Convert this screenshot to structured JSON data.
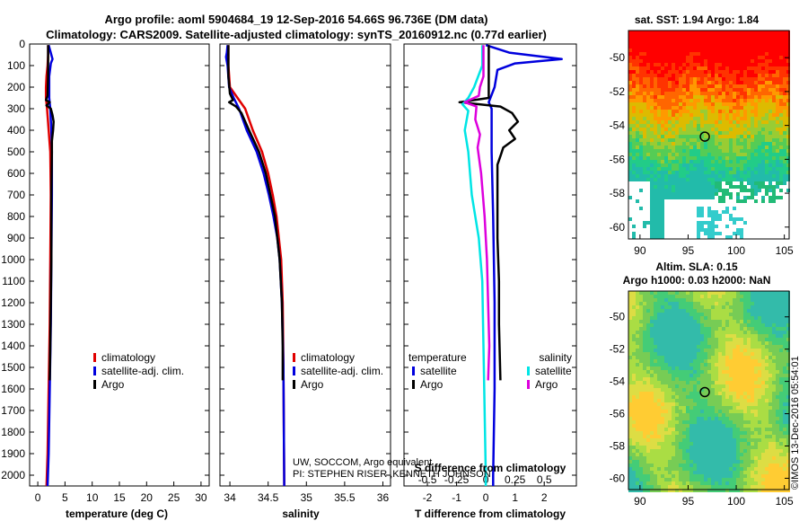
{
  "header": {
    "line1": "Argo profile: aoml 5904684_19 12-Sep-2016 54.66S 96.736E (DM data)",
    "line2": "Climatology: CARS2009. Satellite-adjusted climatology: synTS_20160912.nc (0.77d earlier)"
  },
  "colors": {
    "climatology": "#e00000",
    "satellite": "#0000dd",
    "argo": "#000000",
    "sal_satellite": "#00e5e5",
    "sal_argo": "#dd00dd"
  },
  "depth_axis": {
    "min": 0,
    "max": 2050,
    "ticks": [
      0,
      100,
      200,
      300,
      400,
      500,
      600,
      700,
      800,
      900,
      1000,
      1100,
      1200,
      1300,
      1400,
      1500,
      1600,
      1700,
      1800,
      1900,
      2000
    ]
  },
  "chart_data": [
    {
      "type": "line",
      "id": "temperature",
      "xlabel": "temperature (deg C)",
      "xlim": [
        -1.5,
        31.5
      ],
      "xticks": [
        0,
        5,
        10,
        15,
        20,
        25,
        30
      ],
      "legend": [
        "climatology",
        "satellite-adj. clim.",
        "Argo"
      ],
      "series": [
        {
          "name": "climatology",
          "color": "climatology",
          "points": [
            [
              1.9,
              5
            ],
            [
              1.9,
              50
            ],
            [
              1.8,
              100
            ],
            [
              1.6,
              150
            ],
            [
              1.5,
              200
            ],
            [
              1.5,
              250
            ],
            [
              1.7,
              300
            ],
            [
              2.0,
              400
            ],
            [
              2.3,
              500
            ],
            [
              2.4,
              700
            ],
            [
              2.3,
              1000
            ],
            [
              2.2,
              1300
            ],
            [
              2.0,
              1600
            ],
            [
              1.8,
              1900
            ],
            [
              1.6,
              2050
            ]
          ]
        },
        {
          "name": "satellite-adj. clim.",
          "color": "satellite",
          "points": [
            [
              2.0,
              5
            ],
            [
              2.7,
              70
            ],
            [
              2.4,
              90
            ],
            [
              2.1,
              150
            ],
            [
              2.1,
              250
            ],
            [
              2.3,
              300
            ],
            [
              2.5,
              400
            ],
            [
              2.6,
              500
            ],
            [
              2.6,
              700
            ],
            [
              2.5,
              1000
            ],
            [
              2.4,
              1300
            ],
            [
              2.2,
              1600
            ],
            [
              2.0,
              1900
            ],
            [
              1.8,
              2050
            ]
          ]
        },
        {
          "name": "Argo",
          "color": "argo",
          "points": [
            [
              1.9,
              5
            ],
            [
              1.9,
              150
            ],
            [
              1.8,
              240
            ],
            [
              1.5,
              260
            ],
            [
              2.2,
              270
            ],
            [
              1.6,
              285
            ],
            [
              2.4,
              300
            ],
            [
              2.7,
              330
            ],
            [
              2.9,
              360
            ],
            [
              2.8,
              400
            ],
            [
              2.6,
              450
            ],
            [
              2.6,
              500
            ],
            [
              2.5,
              700
            ],
            [
              2.5,
              1000
            ],
            [
              2.4,
              1200
            ],
            [
              2.3,
              1400
            ],
            [
              2.2,
              1560
            ]
          ]
        }
      ]
    },
    {
      "type": "line",
      "id": "salinity",
      "xlabel": "salinity",
      "xlim": [
        33.87,
        36.1
      ],
      "xticks": [
        34,
        34.5,
        35,
        35.5,
        36
      ],
      "legend": [
        "climatology",
        "satellite-adj. clim.",
        "Argo"
      ],
      "series": [
        {
          "name": "climatology",
          "color": "climatology",
          "points": [
            [
              33.98,
              5
            ],
            [
              33.98,
              100
            ],
            [
              34.0,
              200
            ],
            [
              34.1,
              250
            ],
            [
              34.2,
              300
            ],
            [
              34.3,
              400
            ],
            [
              34.42,
              500
            ],
            [
              34.5,
              600
            ],
            [
              34.56,
              700
            ],
            [
              34.61,
              800
            ],
            [
              34.64,
              900
            ],
            [
              34.67,
              1000
            ],
            [
              34.69,
              1200
            ],
            [
              34.7,
              1500
            ],
            [
              34.71,
              2050
            ]
          ]
        },
        {
          "name": "satellite-adj. clim.",
          "color": "satellite",
          "points": [
            [
              33.97,
              5
            ],
            [
              33.96,
              40
            ],
            [
              33.95,
              60
            ],
            [
              33.97,
              100
            ],
            [
              33.99,
              200
            ],
            [
              34.05,
              250
            ],
            [
              34.12,
              300
            ],
            [
              34.22,
              400
            ],
            [
              34.35,
              500
            ],
            [
              34.44,
              600
            ],
            [
              34.51,
              700
            ],
            [
              34.57,
              800
            ],
            [
              34.62,
              900
            ],
            [
              34.65,
              1000
            ],
            [
              34.68,
              1200
            ],
            [
              34.7,
              1500
            ],
            [
              34.71,
              2050
            ]
          ]
        },
        {
          "name": "Argo",
          "color": "argo",
          "points": [
            [
              33.98,
              5
            ],
            [
              33.98,
              150
            ],
            [
              34.0,
              230
            ],
            [
              34.04,
              260
            ],
            [
              33.99,
              270
            ],
            [
              34.08,
              290
            ],
            [
              34.15,
              320
            ],
            [
              34.25,
              400
            ],
            [
              34.38,
              500
            ],
            [
              34.47,
              600
            ],
            [
              34.53,
              700
            ],
            [
              34.59,
              800
            ],
            [
              34.62,
              900
            ],
            [
              34.65,
              1000
            ],
            [
              34.68,
              1200
            ],
            [
              34.69,
              1400
            ],
            [
              34.69,
              1560
            ]
          ]
        }
      ]
    },
    {
      "type": "line",
      "id": "differences",
      "xlabel": "T difference from climatology",
      "xlabel_top": "S difference from climatology",
      "xlim": [
        -2.8,
        3.1
      ],
      "xticks": [
        -2,
        -1,
        0,
        1,
        2
      ],
      "s_xlim": [
        -0.7,
        0.775
      ],
      "s_xticks": [
        -0.5,
        -0.25,
        0,
        0.25,
        0.5
      ],
      "s_xtick_labels": [
        "-0.5",
        "-0.25",
        "0",
        "0.25",
        "0.5"
      ],
      "legend_left_title": "temperature",
      "legend_right_title": "salinity",
      "legend": [
        "satellite",
        "Argo"
      ],
      "series": [
        {
          "name": "T satellite",
          "color": "satellite",
          "points": [
            [
              0.0,
              5
            ],
            [
              0.8,
              40
            ],
            [
              2.6,
              70
            ],
            [
              1.0,
              90
            ],
            [
              0.4,
              120
            ],
            [
              0.3,
              200
            ],
            [
              0.1,
              270
            ],
            [
              0.2,
              300
            ],
            [
              0.2,
              500
            ],
            [
              0.25,
              800
            ],
            [
              0.3,
              1200
            ],
            [
              0.3,
              1600
            ],
            [
              0.25,
              2000
            ],
            [
              0.25,
              2050
            ]
          ]
        },
        {
          "name": "T Argo",
          "color": "argo",
          "points": [
            [
              0.1,
              5
            ],
            [
              0.1,
              100
            ],
            [
              0.1,
              250
            ],
            [
              -0.9,
              270
            ],
            [
              0.5,
              290
            ],
            [
              0.9,
              320
            ],
            [
              1.1,
              360
            ],
            [
              0.8,
              400
            ],
            [
              1.0,
              440
            ],
            [
              0.6,
              480
            ],
            [
              0.5,
              520
            ],
            [
              0.4,
              560
            ],
            [
              0.4,
              700
            ],
            [
              0.4,
              900
            ],
            [
              0.45,
              1100
            ],
            [
              0.45,
              1300
            ],
            [
              0.5,
              1560
            ]
          ]
        },
        {
          "name": "S satellite",
          "color": "sal_satellite",
          "points": [
            [
              -0.03,
              5
            ],
            [
              -0.03,
              100
            ],
            [
              -0.1,
              200
            ],
            [
              -0.15,
              250
            ],
            [
              -0.2,
              280
            ],
            [
              -0.15,
              310
            ],
            [
              -0.18,
              400
            ],
            [
              -0.15,
              500
            ],
            [
              -0.12,
              700
            ],
            [
              -0.06,
              900
            ],
            [
              -0.03,
              1100
            ],
            [
              -0.02,
              1400
            ],
            [
              0.0,
              2000
            ],
            [
              0.0,
              2050
            ]
          ]
        },
        {
          "name": "S Argo",
          "color": "sal_argo",
          "points": [
            [
              -0.02,
              5
            ],
            [
              -0.02,
              150
            ],
            [
              -0.05,
              200
            ],
            [
              -0.06,
              240
            ],
            [
              -0.18,
              270
            ],
            [
              -0.08,
              290
            ],
            [
              -0.09,
              350
            ],
            [
              -0.05,
              420
            ],
            [
              -0.07,
              480
            ],
            [
              -0.04,
              600
            ],
            [
              -0.01,
              800
            ],
            [
              0.01,
              1000
            ],
            [
              0.02,
              1200
            ],
            [
              0.03,
              1400
            ],
            [
              0.02,
              1560
            ]
          ]
        }
      ]
    },
    {
      "type": "heatmap",
      "id": "sst_map",
      "title": "sat. SST: 1.94 Argo: 1.84",
      "xticks": [
        90,
        95,
        100,
        105
      ],
      "yticks": [
        -50,
        -52,
        -54,
        -56,
        -58,
        -60
      ],
      "xlim": [
        88.8,
        105.5
      ],
      "ylim": [
        -60.7,
        -48.4
      ],
      "marker": [
        96.736,
        -54.66
      ]
    },
    {
      "type": "heatmap",
      "id": "sla_map",
      "title_line1": "Altim. SLA: 0.15",
      "title_line2": "Argo h1000: 0.03 h2000: NaN",
      "xticks": [
        90,
        95,
        100,
        105
      ],
      "yticks": [
        -50,
        -52,
        -54,
        -56,
        -58,
        -60
      ],
      "xlim": [
        88.8,
        105.5
      ],
      "ylim": [
        -60.7,
        -48.4
      ],
      "marker": [
        96.736,
        -54.66
      ]
    }
  ],
  "annotations": {
    "credit_line1": "UW, SOCCOM, Argo equivalent",
    "credit_line2": "PI: STEPHEN RISER ,KENNETH JOHNSON",
    "imos_stamp": "©IMOS 13-Dec-2016 05:54:01"
  }
}
